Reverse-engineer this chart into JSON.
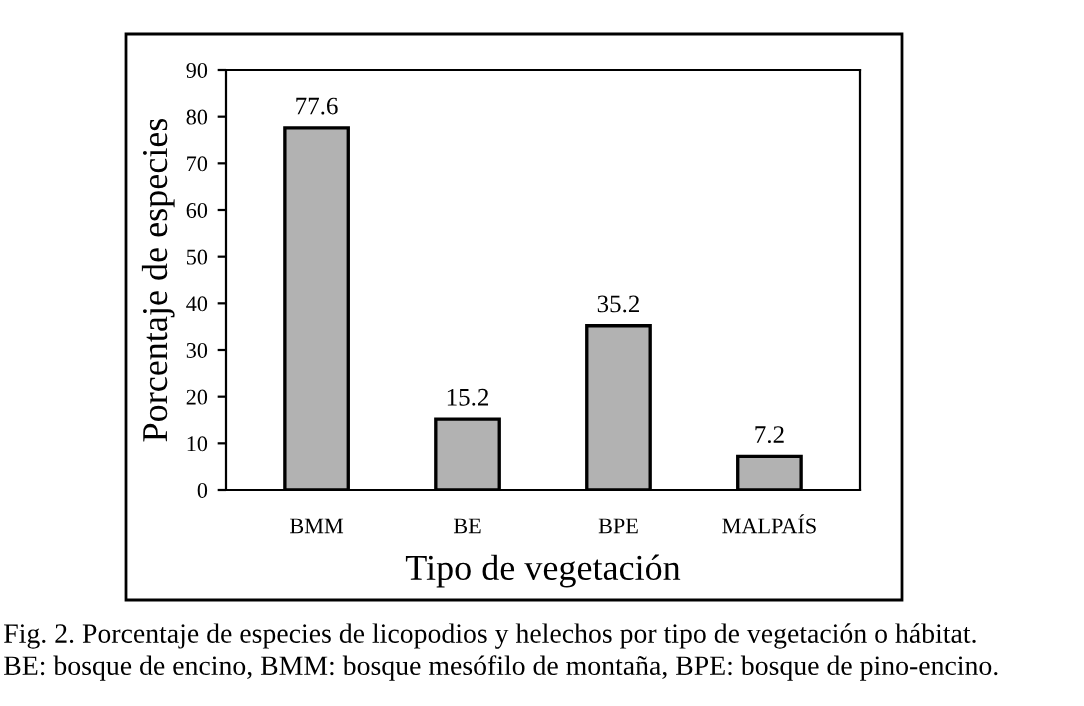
{
  "chart_data": {
    "type": "bar",
    "xlabel": "Tipo de vegetación",
    "ylabel": "Porcentaje de especies",
    "categories": [
      "BMM",
      "BE",
      "BPE",
      "MALPAÍS"
    ],
    "values": [
      77.6,
      15.2,
      35.2,
      7.2
    ],
    "color": "#b2b2b2",
    "data_labels": true,
    "ylim": [
      0,
      90
    ],
    "yticks": [
      0,
      10,
      20,
      30,
      40,
      50,
      60,
      70,
      80,
      90
    ],
    "grid": false,
    "legend": false,
    "annotations": [
      "Fig. 2. Porcentaje de especies de licopodios y helechos por tipo de vegetación o hábitat.",
      "BE: bosque de encino, BMM: bosque mesófilo de montaña, BPE: bosque de pino-encino."
    ]
  }
}
